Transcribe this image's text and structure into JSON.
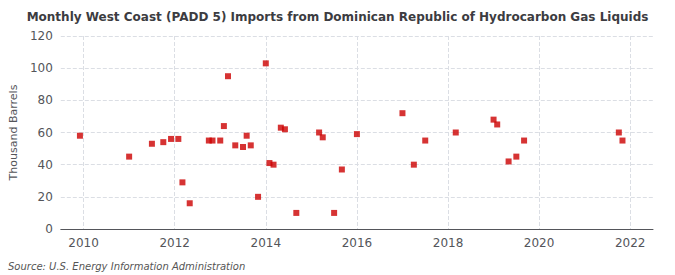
{
  "chart_data": {
    "type": "scatter",
    "title": "Monthly West Coast (PADD 5) Imports from Dominican Republic of Hydrocarbon Gas Liquids",
    "ylabel": "Thousand Barrels",
    "annotations": [
      "Source: U.S. Energy Information Administration"
    ],
    "x": [
      2009.92,
      2011.0,
      2011.5,
      2011.75,
      2011.92,
      2012.08,
      2012.17,
      2012.33,
      2012.75,
      2012.83,
      2013.0,
      2013.08,
      2013.17,
      2013.33,
      2013.5,
      2013.58,
      2013.67,
      2013.83,
      2014.0,
      2014.08,
      2014.17,
      2014.33,
      2014.42,
      2014.67,
      2015.17,
      2015.25,
      2015.5,
      2015.67,
      2016.0,
      2017.0,
      2017.25,
      2017.5,
      2018.17,
      2019.0,
      2019.08,
      2019.33,
      2019.5,
      2019.67,
      2021.75,
      2021.83
    ],
    "values": [
      58,
      45,
      53,
      54,
      56,
      56,
      29,
      16,
      55,
      55,
      55,
      64,
      95,
      52,
      51,
      58,
      52,
      20,
      103,
      41,
      40,
      63,
      62,
      10,
      60,
      57,
      10,
      37,
      59,
      72,
      40,
      55,
      60,
      68,
      65,
      42,
      45,
      55,
      60,
      55
    ],
    "color": "#cc0000",
    "marker": "square",
    "xlim": [
      2009.5,
      2022.5
    ],
    "xticks": [
      2010,
      2012,
      2014,
      2016,
      2018,
      2020,
      2022
    ],
    "ylim": [
      0,
      120
    ],
    "yticks": [
      0,
      20,
      40,
      60,
      80,
      100,
      120
    ],
    "grid": true
  }
}
